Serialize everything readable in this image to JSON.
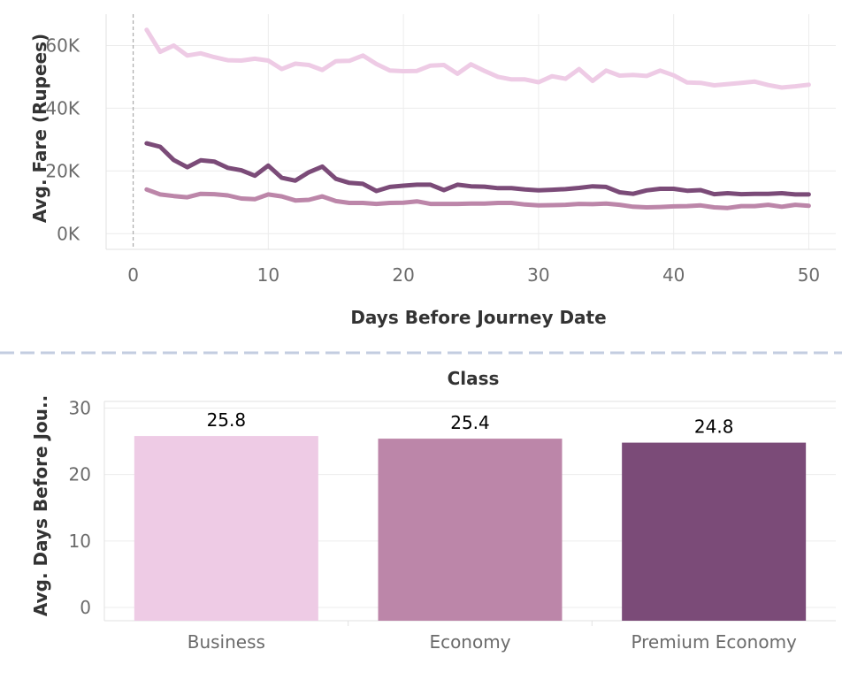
{
  "chart_data": [
    {
      "type": "line",
      "xlabel": "Days Before Journey Date",
      "ylabel": "Avg. Fare (Rupees)",
      "xlim": [
        -2,
        52
      ],
      "ylim": [
        -5000,
        70000
      ],
      "x_ticks": [
        0,
        10,
        20,
        30,
        40,
        50
      ],
      "x_tick_labels": [
        "0",
        "10",
        "20",
        "30",
        "40",
        "50"
      ],
      "y_ticks": [
        0,
        20000,
        40000,
        60000
      ],
      "y_tick_labels": [
        "0K",
        "20K",
        "40K",
        "60K"
      ],
      "reference_line_x": 0,
      "grid": true,
      "series_colors": [
        "#eecbe5",
        "#7b4b78",
        "#bc86a9"
      ],
      "series": [
        {
          "x": [
            1,
            2,
            3,
            4,
            5,
            6,
            7,
            8,
            9,
            10,
            11,
            12,
            13,
            14,
            15,
            16,
            17,
            18,
            19,
            20,
            21,
            22,
            23,
            24,
            25,
            26,
            27,
            28,
            29,
            30,
            31,
            32,
            33,
            34,
            35,
            36,
            37,
            38,
            39,
            40,
            41,
            42,
            43,
            44,
            45,
            46,
            47,
            48,
            49,
            50
          ],
          "values": [
            65000,
            58000,
            60000,
            56800,
            57500,
            56300,
            55300,
            55200,
            55800,
            55200,
            52500,
            54200,
            53800,
            52200,
            55000,
            55100,
            56800,
            54100,
            52000,
            51800,
            51900,
            53600,
            53800,
            51000,
            54000,
            51900,
            50000,
            49200,
            49200,
            48300,
            50200,
            49400,
            52500,
            48700,
            52000,
            50400,
            50600,
            50300,
            52000,
            50500,
            48200,
            48100,
            47300,
            47700,
            48100,
            48500,
            47400,
            46600,
            47000,
            47500
          ]
        },
        {
          "x": [
            1,
            2,
            3,
            4,
            5,
            6,
            7,
            8,
            9,
            10,
            11,
            12,
            13,
            14,
            15,
            16,
            17,
            18,
            19,
            20,
            21,
            22,
            23,
            24,
            25,
            26,
            27,
            28,
            29,
            30,
            31,
            32,
            33,
            34,
            35,
            36,
            37,
            38,
            39,
            40,
            41,
            42,
            43,
            44,
            45,
            46,
            47,
            48,
            49,
            50
          ],
          "values": [
            28800,
            27700,
            23500,
            21200,
            23400,
            23000,
            21000,
            20200,
            18500,
            21700,
            17800,
            16900,
            19600,
            21400,
            17500,
            16200,
            15900,
            13600,
            14900,
            15300,
            15600,
            15600,
            13900,
            15600,
            15100,
            15000,
            14500,
            14500,
            14100,
            13800,
            14000,
            14200,
            14600,
            15100,
            14900,
            13200,
            12700,
            13800,
            14300,
            14300,
            13700,
            13900,
            12600,
            12900,
            12600,
            12700,
            12700,
            12900,
            12500,
            12500
          ]
        },
        {
          "x": [
            1,
            2,
            3,
            4,
            5,
            6,
            7,
            8,
            9,
            10,
            11,
            12,
            13,
            14,
            15,
            16,
            17,
            18,
            19,
            20,
            21,
            22,
            23,
            24,
            25,
            26,
            27,
            28,
            29,
            30,
            31,
            32,
            33,
            34,
            35,
            36,
            37,
            38,
            39,
            40,
            41,
            42,
            43,
            44,
            45,
            46,
            47,
            48,
            49,
            50
          ],
          "values": [
            14100,
            12500,
            12000,
            11600,
            12700,
            12600,
            12200,
            11200,
            11000,
            12500,
            11900,
            10600,
            10800,
            11900,
            10400,
            9800,
            9800,
            9500,
            9800,
            9900,
            10300,
            9500,
            9500,
            9500,
            9600,
            9600,
            9800,
            9800,
            9300,
            9000,
            9100,
            9200,
            9500,
            9400,
            9600,
            9200,
            8600,
            8400,
            8500,
            8700,
            8800,
            9000,
            8400,
            8200,
            8800,
            8800,
            9200,
            8600,
            9200,
            8900
          ]
        }
      ]
    },
    {
      "type": "bar",
      "title": "Class",
      "ylabel": "Avg. Days Before Jou..",
      "categories": [
        "Business",
        "Economy",
        "Premium Economy"
      ],
      "values": [
        25.8,
        25.4,
        24.8
      ],
      "value_labels": [
        "25.8",
        "25.4",
        "24.8"
      ],
      "colors": [
        "#eecbe5",
        "#bc86a9",
        "#7b4b78"
      ],
      "ylim": [
        -2,
        31
      ],
      "y_ticks": [
        0,
        10,
        20,
        30
      ],
      "y_tick_labels": [
        "0",
        "10",
        "20",
        "30"
      ],
      "grid": true
    }
  ],
  "divider_color": "#c3cde0"
}
